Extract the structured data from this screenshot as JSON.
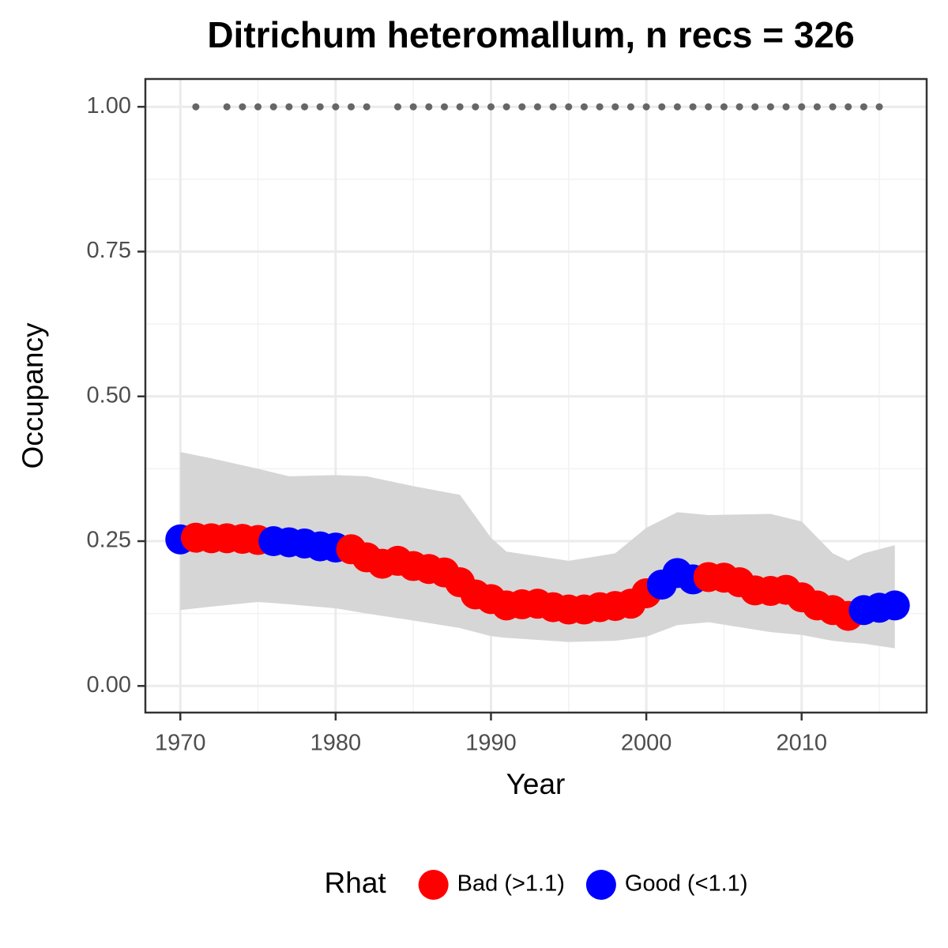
{
  "chart_data": {
    "type": "scatter",
    "title": "Ditrichum heteromallum, n recs = 326",
    "x_label": "Year",
    "y_label": "Occupancy",
    "legend_title": "Rhat",
    "legend_position": "bottom",
    "xlim": [
      1967.75,
      2018.05
    ],
    "ylim": [
      -0.046,
      1.048
    ],
    "xticks": [
      1970,
      1980,
      1990,
      2000,
      2010
    ],
    "x_minor_ticks": [
      1975,
      1985,
      1995,
      2005,
      2015
    ],
    "yticks": [
      {
        "value": 0,
        "label": "0.00"
      },
      {
        "value": 0.25,
        "label": "0.25"
      },
      {
        "value": 0.5,
        "label": "0.50"
      },
      {
        "value": 0.75,
        "label": "0.75"
      },
      {
        "value": 1,
        "label": "1.00"
      }
    ],
    "y_minor_ticks": [
      0.125,
      0.375,
      0.625,
      0.875
    ],
    "grid": true,
    "ribbon": {
      "color": "#d6d6d6",
      "x": [
        1970,
        1972,
        1975,
        1977,
        1980,
        1982,
        1985,
        1988,
        1990,
        1991,
        1995,
        1998,
        2000,
        2002,
        2004,
        2008,
        2010,
        2012,
        2013,
        2014,
        2016
      ],
      "upper": [
        0.404,
        0.393,
        0.375,
        0.362,
        0.364,
        0.362,
        0.345,
        0.33,
        0.256,
        0.232,
        0.216,
        0.229,
        0.273,
        0.3,
        0.295,
        0.297,
        0.284,
        0.229,
        0.216,
        0.229,
        0.243
      ],
      "lower": [
        0.131,
        0.137,
        0.145,
        0.141,
        0.134,
        0.125,
        0.113,
        0.1,
        0.086,
        0.083,
        0.076,
        0.078,
        0.085,
        0.105,
        0.11,
        0.093,
        0.088,
        0.078,
        0.075,
        0.073,
        0.065
      ]
    },
    "records": {
      "color": "#666666",
      "x": [
        1971,
        1973,
        1974,
        1975,
        1976,
        1977,
        1978,
        1979,
        1980,
        1981,
        1982,
        1984,
        1985,
        1986,
        1987,
        1988,
        1989,
        1990,
        1991,
        1992,
        1993,
        1994,
        1995,
        1996,
        1997,
        1998,
        1999,
        2000,
        2001,
        2002,
        2003,
        2004,
        2005,
        2006,
        2007,
        2008,
        2009,
        2010,
        2011,
        2012,
        2013,
        2014,
        2015
      ],
      "values": [
        1,
        1,
        1,
        1,
        1,
        1,
        1,
        1,
        1,
        1,
        1,
        1,
        1,
        1,
        1,
        1,
        1,
        1,
        1,
        1,
        1,
        1,
        1,
        1,
        1,
        1,
        1,
        1,
        1,
        1,
        1,
        1,
        1,
        1,
        1,
        1,
        1,
        1,
        1,
        1,
        1,
        1,
        1
      ]
    },
    "series": [
      {
        "name": "Bad (>1.1)",
        "color": "#ff0000",
        "x": [
          1971,
          1972,
          1973,
          1974,
          1975,
          1981,
          1982,
          1983,
          1984,
          1985,
          1986,
          1987,
          1988,
          1989,
          1990,
          1991,
          1992,
          1993,
          1994,
          1995,
          1996,
          1997,
          1998,
          1999,
          2000,
          2004,
          2005,
          2006,
          2007,
          2008,
          2009,
          2010,
          2011,
          2012,
          2013
        ],
        "values": [
          0.256,
          0.255,
          0.255,
          0.254,
          0.252,
          0.236,
          0.222,
          0.211,
          0.216,
          0.207,
          0.202,
          0.196,
          0.179,
          0.158,
          0.15,
          0.139,
          0.141,
          0.142,
          0.136,
          0.132,
          0.132,
          0.136,
          0.138,
          0.142,
          0.16,
          0.188,
          0.187,
          0.179,
          0.165,
          0.164,
          0.166,
          0.153,
          0.139,
          0.131,
          0.121
        ]
      },
      {
        "name": "Good (<1.1)",
        "color": "#0000ff",
        "x": [
          1970,
          1976,
          1977,
          1978,
          1979,
          1980,
          2001,
          2002,
          2003,
          2014,
          2015,
          2016
        ],
        "values": [
          0.253,
          0.25,
          0.248,
          0.246,
          0.241,
          0.239,
          0.175,
          0.195,
          0.184,
          0.131,
          0.135,
          0.139
        ]
      }
    ]
  }
}
